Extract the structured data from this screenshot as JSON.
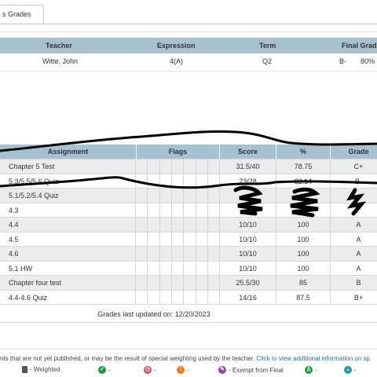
{
  "tab": {
    "label": "s Grades"
  },
  "class_table": {
    "headers": {
      "teacher": "Teacher",
      "expression": "Expression",
      "term": "Term",
      "final": "Final Grad"
    },
    "row": {
      "teacher": "Witte, John",
      "expression": "4(A)",
      "term": "Q2",
      "final_letter": "B-",
      "final_pct": "80%"
    }
  },
  "assignments_table": {
    "headers": {
      "assignment": "Assignment",
      "flags": "Flags",
      "score": "Score",
      "percent": "%",
      "grade": "Grade"
    },
    "rows": [
      {
        "name": "Chapter 5 Test",
        "score": "31.5/40",
        "percent": "78.75",
        "grade": "C+"
      },
      {
        "name": "5.3/5.5/5.6 Quiz",
        "score": "23/28",
        "percent": "82.14",
        "grade": "B-"
      },
      {
        "name": "5.1/5.2/5.4 Quiz",
        "score": "",
        "percent": "",
        "grade": ""
      },
      {
        "name": "4.3",
        "score": "",
        "percent": "",
        "grade": ""
      },
      {
        "name": "4.4",
        "score": "10/10",
        "percent": "100",
        "grade": "A"
      },
      {
        "name": "4.5",
        "score": "10/10",
        "percent": "100",
        "grade": "A"
      },
      {
        "name": "4.6",
        "score": "10/10",
        "percent": "100",
        "grade": "A"
      },
      {
        "name": "5.1 HW",
        "score": "10/10",
        "percent": "100",
        "grade": "A"
      },
      {
        "name": "Chapter four test",
        "score": "25.5/30",
        "percent": "85",
        "grade": "B"
      },
      {
        "name": "4.4-4.6 Quiz",
        "score": "14/16",
        "percent": "87.5",
        "grade": "B+"
      }
    ],
    "last_updated": "Grades last updated on: 12/20/2023"
  },
  "footnote": {
    "text": "nts that are not yet published, or may be the result of special weighting used by the teacher. ",
    "link": "Click to view additional information on sp"
  },
  "legend": {
    "weighted": "- Weighted",
    "exempt": "- Exempt from Final",
    "colors": {
      "green": "#1f9d3f",
      "red": "#d94a5a",
      "orange": "#ef7a1a",
      "purple": "#8e44ad",
      "teal": "#1aa0a0"
    }
  },
  "colors": {
    "header_bg": "#a6c1cf",
    "alt_row": "#ececec",
    "link": "#1f6fb2"
  }
}
